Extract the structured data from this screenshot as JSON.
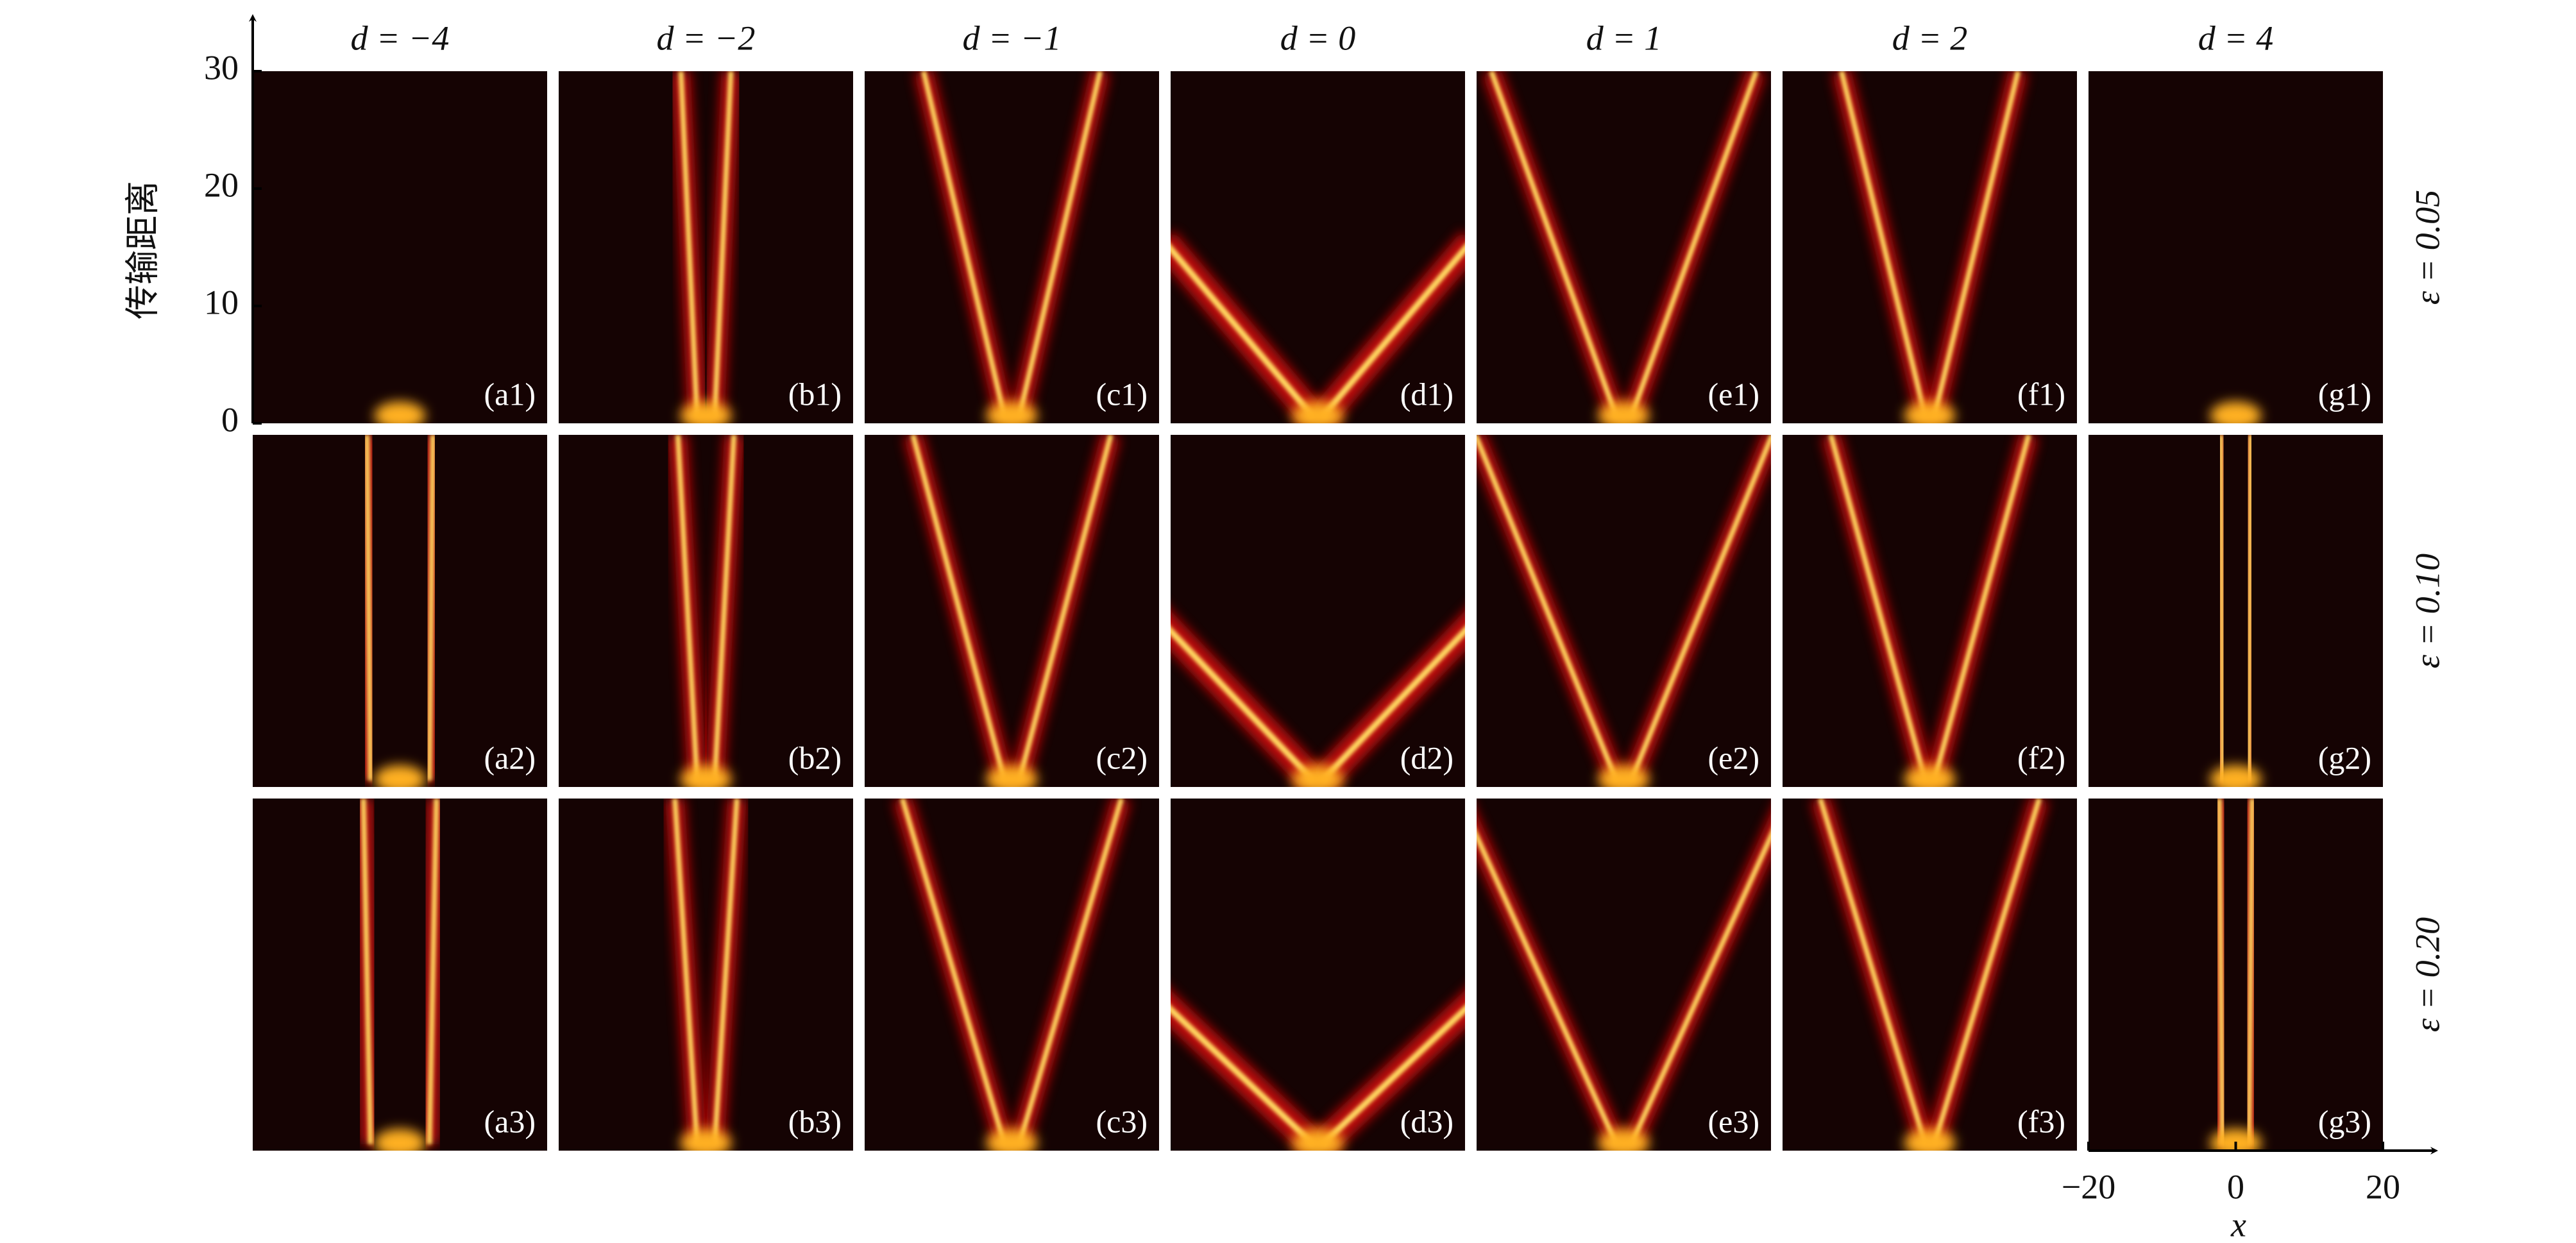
{
  "chart_data": {
    "type": "heatmap-grid",
    "y_label": "传输距离",
    "x_label": "x",
    "columns": [
      "d = −4",
      "d = −2",
      "d = −1",
      "d = 0",
      "d = 1",
      "d = 2",
      "d = 4"
    ],
    "rows": [
      "ε = 0.05",
      "ε = 0.10",
      "ε = 0.20"
    ],
    "panel_labels": [
      [
        "(a1)",
        "(b1)",
        "(c1)",
        "(d1)",
        "(e1)",
        "(f1)",
        "(g1)"
      ],
      [
        "(a2)",
        "(b2)",
        "(c2)",
        "(d2)",
        "(e2)",
        "(f2)",
        "(g2)"
      ],
      [
        "(a3)",
        "(b3)",
        "(c3)",
        "(d3)",
        "(e3)",
        "(f3)",
        "(g3)"
      ]
    ],
    "ylim": [
      0,
      30
    ],
    "yticks": [
      0,
      10,
      20,
      30
    ],
    "xlim": [
      -20,
      20
    ],
    "xticks": [
      {
        "value": -20,
        "label": "−20"
      },
      0,
      20
    ]
  }
}
